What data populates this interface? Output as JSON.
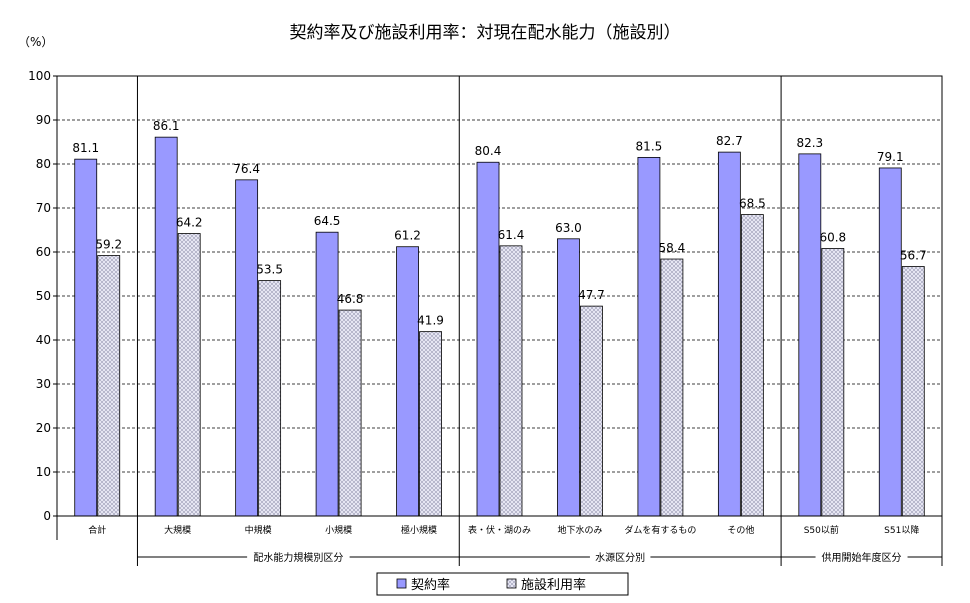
{
  "chart_data": {
    "type": "bar",
    "title": "契約率及び施設利用率：対現在配水能力（施設別）",
    "ylabel": "（%）",
    "ylim": [
      0,
      100
    ],
    "yticks": [
      0,
      10,
      20,
      30,
      40,
      50,
      60,
      70,
      80,
      90,
      100
    ],
    "grid": true,
    "legend_position": "bottom",
    "categories": [
      "合計",
      "大規模",
      "中規模",
      "小規模",
      "極小規模",
      "表・伏・湖のみ",
      "地下水のみ",
      "ダムを有するもの",
      "その他",
      "S50以前",
      "S51以降"
    ],
    "groups": [
      {
        "label": "配水能力規模別区分",
        "start": 1,
        "end": 4
      },
      {
        "label": "水源区分別",
        "start": 5,
        "end": 8
      },
      {
        "label": "供用開始年度区分",
        "start": 9,
        "end": 10
      }
    ],
    "series": [
      {
        "name": "契約率",
        "color": "#9999ff",
        "values": [
          81.1,
          86.1,
          76.4,
          64.5,
          61.2,
          80.4,
          63.0,
          81.5,
          82.7,
          82.3,
          79.1
        ],
        "labels": [
          "81.1",
          "86.1",
          "76.4",
          "64.5",
          "61.2",
          "80.4",
          "63.0",
          "81.5",
          "82.7",
          "82.3",
          "79.1"
        ]
      },
      {
        "name": "施設利用率",
        "color": "#d8d8f0",
        "values": [
          59.2,
          64.2,
          53.5,
          46.8,
          41.9,
          61.4,
          47.7,
          58.4,
          68.5,
          60.8,
          56.7
        ],
        "labels": [
          "59.2",
          "64.2",
          "53.5",
          "46.8",
          "41.9",
          "61.4",
          "47.7",
          "58.4",
          "68.5",
          "60.8",
          "56.7"
        ]
      }
    ]
  }
}
